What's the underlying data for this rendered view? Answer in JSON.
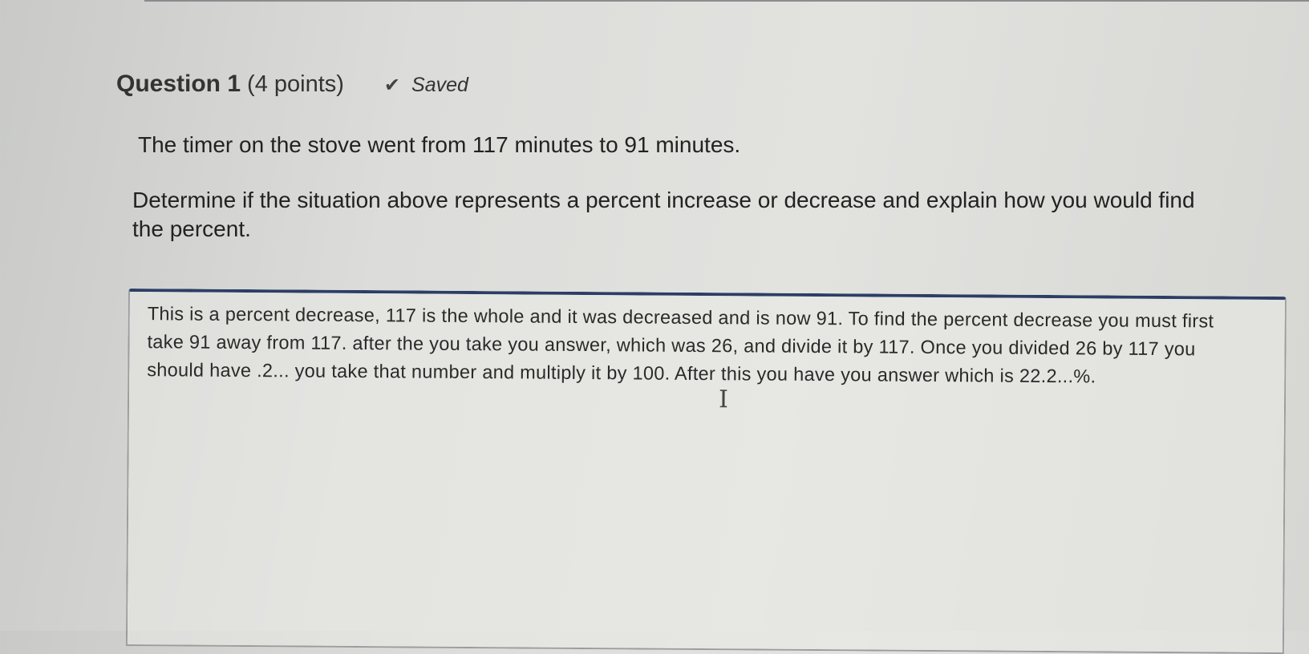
{
  "question": {
    "title": "Question 1",
    "points": "(4 points)",
    "status": "Saved",
    "status_icon": "check-icon",
    "prompt_line1": "The timer on the stove went from 117 minutes to 91 minutes.",
    "prompt_line2": "Determine if the situation above represents a percent increase or decrease and explain how you would find the percent."
  },
  "answer": {
    "value": "This is a percent decrease, 117 is the whole and it was decreased and is now 91. To find the percent decrease you must first take 91 away from 117. after the you take you answer, which was 26, and divide it by 117. Once you divided 26 by 117 you should have .2... you take that number and multiply it by 100. After this you have you answer which is 22.2...%."
  },
  "colors": {
    "focus_border": "#2c3e66"
  }
}
